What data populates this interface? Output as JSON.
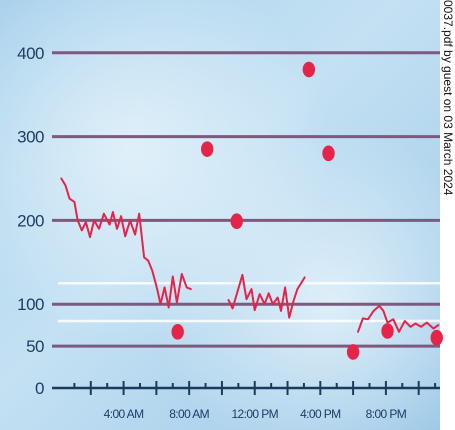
{
  "chart_data": {
    "type": "line",
    "title": "",
    "xlabel": "",
    "ylabel": "",
    "ylim": [
      0,
      420
    ],
    "xlim": [
      0,
      23.3
    ],
    "y_ticks": [
      "0",
      "50",
      "100",
      "200",
      "300",
      "400"
    ],
    "x_ticks": [
      {
        "hour": 4,
        "label": "4:00 AM"
      },
      {
        "hour": 8,
        "label": "8:00 AM"
      },
      {
        "hour": 12,
        "label": "12:00 PM"
      },
      {
        "hour": 16,
        "label": "4:00 PM"
      },
      {
        "hour": 20,
        "label": "8:00 PM"
      }
    ],
    "gridlines": [
      50,
      100,
      200,
      300,
      400
    ],
    "target_band": [
      80,
      125
    ],
    "grid": true,
    "series": [
      {
        "kind": "continuous",
        "values": [
          [
            [
              0.2,
              250
            ],
            [
              0.45,
              242
            ],
            [
              0.7,
              226
            ],
            [
              1.0,
              222
            ],
            [
              1.2,
              200
            ],
            [
              1.45,
              188
            ],
            [
              1.7,
              198
            ],
            [
              1.95,
              180
            ],
            [
              2.2,
              200
            ],
            [
              2.5,
              190
            ],
            [
              2.8,
              208
            ],
            [
              3.15,
              195
            ],
            [
              3.35,
              210
            ],
            [
              3.6,
              190
            ],
            [
              3.85,
              205
            ],
            [
              4.1,
              181
            ],
            [
              4.4,
              200
            ],
            [
              4.7,
              183
            ],
            [
              4.95,
              208
            ],
            [
              5.25,
              156
            ],
            [
              5.5,
              152
            ],
            [
              5.75,
              140
            ],
            [
              6.05,
              118
            ],
            [
              6.25,
              100
            ],
            [
              6.5,
              120
            ],
            [
              6.75,
              96
            ],
            [
              7.0,
              133
            ],
            [
              7.25,
              102
            ],
            [
              7.55,
              136
            ],
            [
              7.85,
              120
            ],
            [
              8.1,
              118
            ]
          ],
          [
            [
              10.4,
              105
            ],
            [
              10.65,
              95
            ],
            [
              10.95,
              115
            ],
            [
              11.25,
              135
            ],
            [
              11.5,
              106
            ],
            [
              11.8,
              118
            ],
            [
              12.0,
              93
            ],
            [
              12.3,
              112
            ],
            [
              12.6,
              100
            ],
            [
              12.85,
              113
            ],
            [
              13.1,
              100
            ],
            [
              13.4,
              108
            ],
            [
              13.6,
              92
            ],
            [
              13.85,
              120
            ],
            [
              14.1,
              84
            ],
            [
              14.35,
              103
            ],
            [
              14.6,
              118
            ],
            [
              15.05,
              132
            ]
          ],
          [
            [
              18.3,
              67
            ],
            [
              18.6,
              83
            ],
            [
              18.9,
              82
            ],
            [
              19.25,
              92
            ],
            [
              19.6,
              98
            ],
            [
              19.85,
              92
            ],
            [
              20.1,
              78
            ],
            [
              20.45,
              82
            ],
            [
              20.8,
              67
            ],
            [
              21.15,
              80
            ],
            [
              21.5,
              73
            ],
            [
              21.8,
              77
            ],
            [
              22.15,
              73
            ],
            [
              22.5,
              78
            ],
            [
              22.9,
              71
            ],
            [
              23.2,
              75
            ]
          ]
        ]
      },
      {
        "kind": "fingerstick",
        "values": [
          [
            7.3,
            67
          ],
          [
            9.1,
            285
          ],
          [
            10.9,
            199
          ],
          [
            15.3,
            380
          ],
          [
            16.5,
            280
          ],
          [
            18.0,
            43
          ],
          [
            20.1,
            68
          ],
          [
            23.1,
            60
          ]
        ]
      }
    ]
  },
  "side_note": "0037.pdf by guest on 03 March 2024",
  "colors": {
    "series": "#e5244a",
    "gridline": "#7b5a7e",
    "band": "#ffffff",
    "axis": "#1b3a5e",
    "label": "#1d3d66"
  }
}
